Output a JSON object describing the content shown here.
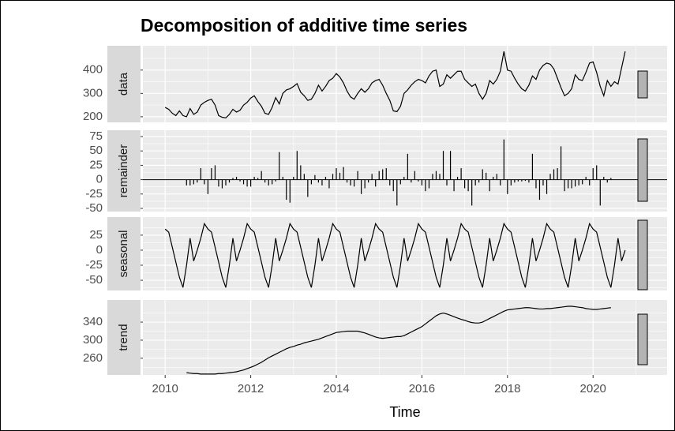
{
  "chart_data": {
    "type": "line",
    "title": "Decomposition of additive time series",
    "xlabel": "Time",
    "color": "#000000",
    "xlim": [
      2009.48,
      2021.73
    ],
    "xticks": [
      2010,
      2012,
      2014,
      2016,
      2018,
      2020
    ],
    "x": [
      2010,
      2010.083,
      2010.167,
      2010.25,
      2010.333,
      2010.417,
      2010.5,
      2010.583,
      2010.667,
      2010.75,
      2010.833,
      2010.917,
      2011,
      2011.083,
      2011.167,
      2011.25,
      2011.333,
      2011.417,
      2011.5,
      2011.583,
      2011.667,
      2011.75,
      2011.833,
      2011.917,
      2012,
      2012.083,
      2012.167,
      2012.25,
      2012.333,
      2012.417,
      2012.5,
      2012.583,
      2012.667,
      2012.75,
      2012.833,
      2012.917,
      2013,
      2013.083,
      2013.167,
      2013.25,
      2013.333,
      2013.417,
      2013.5,
      2013.583,
      2013.667,
      2013.75,
      2013.833,
      2013.917,
      2014,
      2014.083,
      2014.167,
      2014.25,
      2014.333,
      2014.417,
      2014.5,
      2014.583,
      2014.667,
      2014.75,
      2014.833,
      2014.917,
      2015,
      2015.083,
      2015.167,
      2015.25,
      2015.333,
      2015.417,
      2015.5,
      2015.583,
      2015.667,
      2015.75,
      2015.833,
      2015.917,
      2016,
      2016.083,
      2016.167,
      2016.25,
      2016.333,
      2016.417,
      2016.5,
      2016.583,
      2016.667,
      2016.75,
      2016.833,
      2016.917,
      2017,
      2017.083,
      2017.167,
      2017.25,
      2017.333,
      2017.417,
      2017.5,
      2017.583,
      2017.667,
      2017.75,
      2017.833,
      2017.917,
      2018,
      2018.083,
      2018.167,
      2018.25,
      2018.333,
      2018.417,
      2018.5,
      2018.583,
      2018.667,
      2018.75,
      2018.833,
      2018.917,
      2019,
      2019.083,
      2019.167,
      2019.25,
      2019.333,
      2019.417,
      2019.5,
      2019.583,
      2019.667,
      2019.75,
      2019.833,
      2019.917,
      2020,
      2020.083,
      2020.167,
      2020.25,
      2020.333,
      2020.417,
      2020.5,
      2020.583,
      2020.667,
      2020.75
    ],
    "panels": [
      {
        "name": "data",
        "kind": "line",
        "ylim": [
          176,
          504
        ],
        "yticks": [
          200,
          300,
          400
        ],
        "values": [
          240,
          232,
          215,
          205,
          225,
          205,
          200,
          235,
          210,
          220,
          250,
          262,
          270,
          275,
          250,
          205,
          198,
          195,
          210,
          232,
          220,
          228,
          250,
          262,
          280,
          290,
          265,
          245,
          215,
          210,
          240,
          282,
          255,
          300,
          315,
          320,
          330,
          342,
          305,
          290,
          270,
          275,
          300,
          335,
          310,
          330,
          355,
          365,
          385,
          370,
          345,
          310,
          285,
          275,
          300,
          320,
          305,
          320,
          345,
          355,
          360,
          335,
          300,
          270,
          225,
          222,
          245,
          300,
          315,
          335,
          350,
          360,
          355,
          345,
          375,
          395,
          400,
          330,
          340,
          380,
          365,
          380,
          395,
          395,
          360,
          345,
          330,
          340,
          300,
          275,
          300,
          355,
          340,
          360,
          395,
          480,
          400,
          395,
          365,
          340,
          320,
          310,
          335,
          375,
          360,
          400,
          420,
          430,
          425,
          405,
          365,
          325,
          290,
          300,
          320,
          380,
          360,
          355,
          390,
          430,
          435,
          390,
          330,
          290,
          355,
          330,
          350,
          340,
          410,
          480
        ]
      },
      {
        "name": "remainder",
        "kind": "bar",
        "ylim": [
          -55.5,
          86
        ],
        "yticks": [
          -50,
          -25,
          0,
          25,
          50,
          75
        ],
        "values": [
          null,
          null,
          null,
          null,
          null,
          null,
          -10,
          -10,
          -8,
          -5,
          20,
          -8,
          -25,
          20,
          25,
          -12,
          -15,
          -10,
          -5,
          3,
          5,
          -3,
          -8,
          -12,
          -12,
          5,
          3,
          15,
          -5,
          -10,
          -8,
          -3,
          48,
          5,
          -35,
          -40,
          5,
          50,
          25,
          10,
          -30,
          -8,
          8,
          -5,
          -10,
          5,
          -15,
          10,
          20,
          12,
          22,
          -5,
          -10,
          -12,
          15,
          -25,
          -15,
          -5,
          10,
          -12,
          15,
          18,
          20,
          -10,
          -20,
          -45,
          -8,
          5,
          45,
          -5,
          15,
          -3,
          -10,
          -20,
          -15,
          10,
          15,
          10,
          50,
          -10,
          50,
          -20,
          5,
          20,
          -15,
          -20,
          -45,
          -10,
          -5,
          18,
          12,
          -20,
          5,
          10,
          -10,
          70,
          -25,
          -10,
          -5,
          -3,
          -3,
          -2,
          -5,
          45,
          -15,
          -35,
          -10,
          -25,
          10,
          18,
          20,
          58,
          -20,
          -15,
          -15,
          -12,
          -10,
          -8,
          5,
          -10,
          20,
          25,
          -45,
          5,
          -5,
          3,
          null,
          null,
          null,
          null
        ]
      },
      {
        "name": "seasonal",
        "kind": "line",
        "ylim": [
          -67,
          55
        ],
        "yticks": [
          -50,
          -25,
          0,
          25
        ],
        "values": [
          35,
          30,
          5,
          -20,
          -45,
          -62,
          -25,
          20,
          -18,
          0,
          20,
          44,
          35,
          30,
          5,
          -20,
          -45,
          -62,
          -25,
          20,
          -18,
          0,
          20,
          44,
          35,
          30,
          5,
          -20,
          -45,
          -62,
          -25,
          20,
          -18,
          0,
          20,
          44,
          35,
          30,
          5,
          -20,
          -45,
          -62,
          -25,
          20,
          -18,
          0,
          20,
          44,
          35,
          30,
          5,
          -20,
          -45,
          -62,
          -25,
          20,
          -18,
          0,
          20,
          44,
          35,
          30,
          5,
          -20,
          -45,
          -62,
          -25,
          20,
          -18,
          0,
          20,
          44,
          35,
          30,
          5,
          -20,
          -45,
          -62,
          -25,
          20,
          -18,
          0,
          20,
          44,
          35,
          30,
          5,
          -20,
          -45,
          -62,
          -25,
          20,
          -18,
          0,
          20,
          44,
          35,
          30,
          5,
          -20,
          -45,
          -62,
          -25,
          20,
          -18,
          0,
          20,
          44,
          35,
          30,
          5,
          -20,
          -45,
          -62,
          -25,
          20,
          -18,
          0,
          20,
          44,
          35,
          30,
          5,
          -20,
          -45,
          -62,
          -25,
          20,
          -18,
          0
        ]
      },
      {
        "name": "trend",
        "kind": "line",
        "ylim": [
          223,
          389
        ],
        "yticks": [
          260,
          300,
          340
        ],
        "values": [
          null,
          null,
          null,
          null,
          null,
          null,
          228,
          227,
          226,
          226,
          225,
          225,
          225,
          225,
          225,
          226,
          226,
          227,
          228,
          229,
          230,
          232,
          234,
          237,
          240,
          243,
          247,
          251,
          256,
          261,
          265,
          269,
          273,
          277,
          281,
          284,
          286,
          289,
          291,
          294,
          296,
          298,
          300,
          302,
          305,
          308,
          311,
          314,
          317,
          318,
          319,
          320,
          320,
          320,
          320,
          318,
          316,
          313,
          310,
          307,
          305,
          304,
          305,
          306,
          307,
          308,
          308,
          310,
          314,
          318,
          322,
          326,
          330,
          336,
          342,
          348,
          354,
          358,
          360,
          358,
          355,
          352,
          349,
          346,
          344,
          341,
          339,
          338,
          338,
          340,
          344,
          348,
          352,
          356,
          360,
          364,
          367,
          368,
          369,
          370,
          371,
          372,
          372,
          371,
          370,
          369,
          369,
          370,
          370,
          371,
          372,
          373,
          374,
          375,
          375,
          374,
          373,
          372,
          370,
          369,
          368,
          368,
          369,
          370,
          371,
          372,
          null,
          null,
          null,
          null
        ]
      }
    ]
  }
}
